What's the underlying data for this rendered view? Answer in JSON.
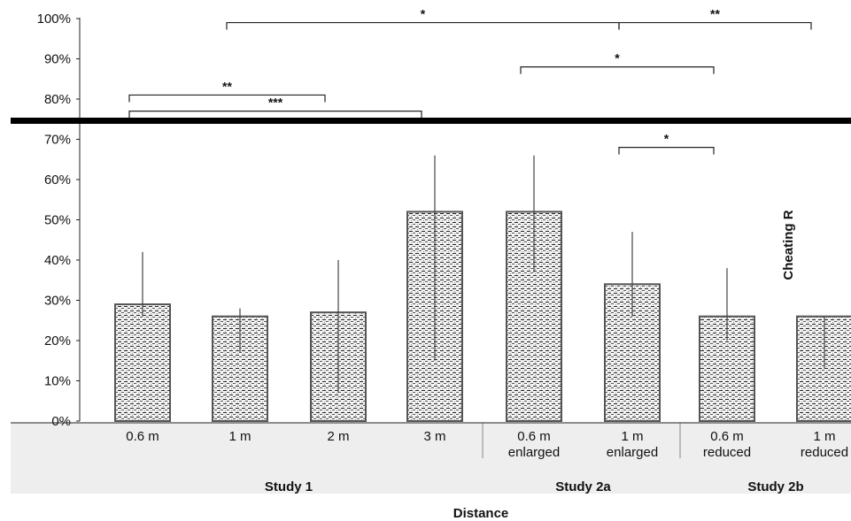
{
  "chart_data": {
    "type": "bar",
    "title": "",
    "xlabel": "Distance",
    "ylabel": "Cheating R",
    "ylim": [
      0,
      100
    ],
    "yticks": [
      "0%",
      "10%",
      "20%",
      "30%",
      "40%",
      "50%",
      "60%",
      "70%",
      "80%",
      "90%",
      "100%"
    ],
    "categories": [
      {
        "line1": "0.6 m",
        "line2": "",
        "group": "Study 1"
      },
      {
        "line1": "1 m",
        "line2": "",
        "group": "Study 1"
      },
      {
        "line1": "2 m",
        "line2": "",
        "group": "Study 1"
      },
      {
        "line1": "3 m",
        "line2": "",
        "group": "Study 1"
      },
      {
        "line1": "0.6 m",
        "line2": "enlarged",
        "group": "Study 2a"
      },
      {
        "line1": "1 m",
        "line2": "enlarged",
        "group": "Study 2a"
      },
      {
        "line1": "0.6 m",
        "line2": "reduced",
        "group": "Study 2b"
      },
      {
        "line1": "1 m",
        "line2": "reduced",
        "group": "Study 2b"
      }
    ],
    "groups": [
      "Study 1",
      "Study 2a",
      "Study 2b"
    ],
    "values": [
      29,
      26,
      27,
      52,
      52,
      34,
      26,
      26
    ],
    "error_upper": [
      42,
      28,
      40,
      66,
      66,
      47,
      38,
      26
    ],
    "error_lower": [
      26,
      17,
      7,
      15,
      37,
      26,
      20,
      13
    ],
    "significance": [
      {
        "from": 0,
        "to": 2,
        "label": "**",
        "level": 81
      },
      {
        "from": 0,
        "to": 3,
        "label": "***",
        "level": 77
      },
      {
        "from": 1,
        "to": 5,
        "label": "*",
        "level": 99
      },
      {
        "from": 5,
        "to": 7,
        "label": "**",
        "level": 99
      },
      {
        "from": 4,
        "to": 6,
        "label": "*",
        "level": 88
      },
      {
        "from": 5,
        "to": 6,
        "label": "*",
        "level": 68
      }
    ]
  },
  "colors": {
    "bar_fill": "#e6e6e6",
    "bar_edge": "#555555",
    "error": "#444444",
    "axis_band": "#eeeeee",
    "black_band": "#000000"
  }
}
